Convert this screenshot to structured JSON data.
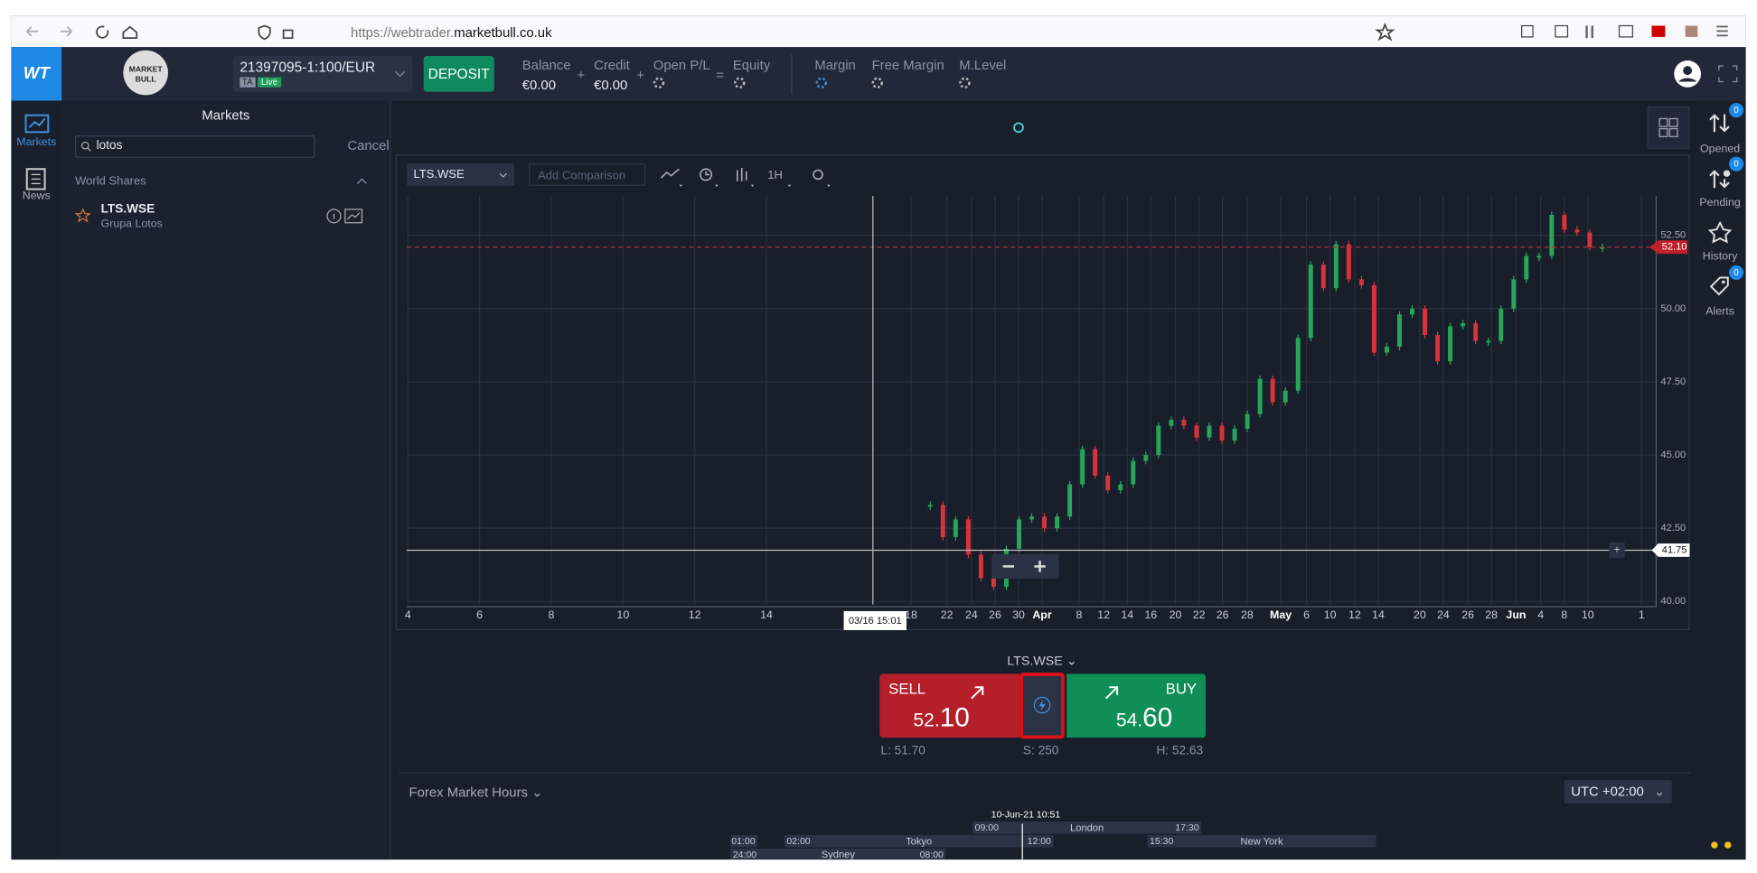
{
  "browser": {
    "url_scheme": "https://webtrader.",
    "url_domain": "marketbull.co.uk"
  },
  "header": {
    "logo": "WT",
    "brand": "MARKET BULL",
    "account": "21397095-1:100/EUR",
    "badge_ta": "TA",
    "badge_live": "Live",
    "deposit": "DEPOSIT",
    "balance_label": "Balance",
    "balance_value": "€0.00",
    "plus": "+",
    "credit_label": "Credit",
    "credit_value": "€0.00",
    "open_pl_label": "Open P/L",
    "equals": "=",
    "equity_label": "Equity",
    "margin_label": "Margin",
    "free_margin_label": "Free Margin",
    "m_level_label": "M.Level"
  },
  "nav": [
    {
      "label": "Markets"
    },
    {
      "label": "News"
    }
  ],
  "markets": {
    "title": "Markets",
    "search": "lotos",
    "cancel": "Cancel",
    "group": "World Shares",
    "items": [
      {
        "symbol": "LTS.WSE",
        "name": "Grupa Lotos"
      }
    ]
  },
  "right_nav": [
    {
      "label": "Opened",
      "count": "0"
    },
    {
      "label": "Pending",
      "count": "0"
    },
    {
      "label": "History"
    },
    {
      "label": "Alerts",
      "count": "0"
    }
  ],
  "toolbar": {
    "symbol": "LTS.WSE",
    "comparison": "Add Comparison",
    "interval": "1H"
  },
  "chart_data": {
    "type": "candlestick",
    "ylim": [
      39.9,
      53.85
    ],
    "yticks": [
      {
        "value": 40,
        "label": "40.00"
      },
      {
        "value": 42.5,
        "label": "42.50"
      },
      {
        "value": 45,
        "label": "45.00"
      },
      {
        "value": 47.5,
        "label": "47.50"
      },
      {
        "value": 50,
        "label": "50.00"
      },
      {
        "value": 52.5,
        "label": "52.50"
      }
    ],
    "grid": true,
    "xticks": [
      "4",
      "6",
      "8",
      "10",
      "12",
      "14",
      "18",
      "22",
      "24",
      "26",
      "30",
      "Apr",
      "8",
      "12",
      "14",
      "16",
      "20",
      "22",
      "26",
      "28",
      "May",
      "6",
      "10",
      "12",
      "14",
      "20",
      "24",
      "26",
      "28",
      "Jun",
      "4",
      "8",
      "10",
      "1"
    ],
    "up_color": "#26a65b",
    "down_color": "#d8323c",
    "values": [
      43.3,
      42.2,
      42.8,
      41.6,
      40.8,
      40.5,
      41.8,
      42.8,
      42.9,
      42.5,
      42.9,
      44.0,
      45.2,
      44.3,
      43.8,
      44.0,
      44.8,
      45.0,
      46.0,
      46.2,
      46.0,
      45.6,
      46.0,
      45.5,
      45.9,
      46.4,
      47.6,
      46.8,
      47.2,
      49.0,
      51.5,
      50.7,
      52.2,
      51.0,
      50.8,
      48.5,
      48.7,
      49.8,
      50.0,
      49.1,
      48.2,
      49.4,
      49.5,
      48.9,
      48.9,
      50.0,
      51.0,
      51.8,
      51.8,
      53.2,
      52.7,
      52.6,
      52.1,
      52.1
    ],
    "last_price": {
      "value": 52.1,
      "label": "52.10"
    },
    "crosshair_price": {
      "value": 41.75,
      "label": "41.75"
    },
    "crosshair_time": "03/16 15:01"
  },
  "trade": {
    "symbol": "LTS.WSE",
    "sell": {
      "label": "SELL",
      "price_small": "52.",
      "price_big": "10"
    },
    "buy": {
      "label": "BUY",
      "price_small": "54.",
      "price_big": "60"
    },
    "low": "L: 51.70",
    "spread": "S: 250",
    "high": "H: 52.63"
  },
  "market_hours": {
    "title": "Forex Market Hours",
    "timezone": "UTC +02:00",
    "now_label": "10-Jun-21 10:51",
    "now": "10:51",
    "sessions": [
      {
        "name": "London",
        "open": "09:00",
        "close": "17:30",
        "row": 0
      },
      {
        "name": "Tokyo",
        "open": "02:00",
        "close": "12:00",
        "row": 1
      },
      {
        "name": "New York",
        "open": "15:30",
        "close": "01:00",
        "row": 1
      },
      {
        "name": "Sydney",
        "open": "24:00",
        "close": "08:00",
        "row": 2
      }
    ]
  }
}
